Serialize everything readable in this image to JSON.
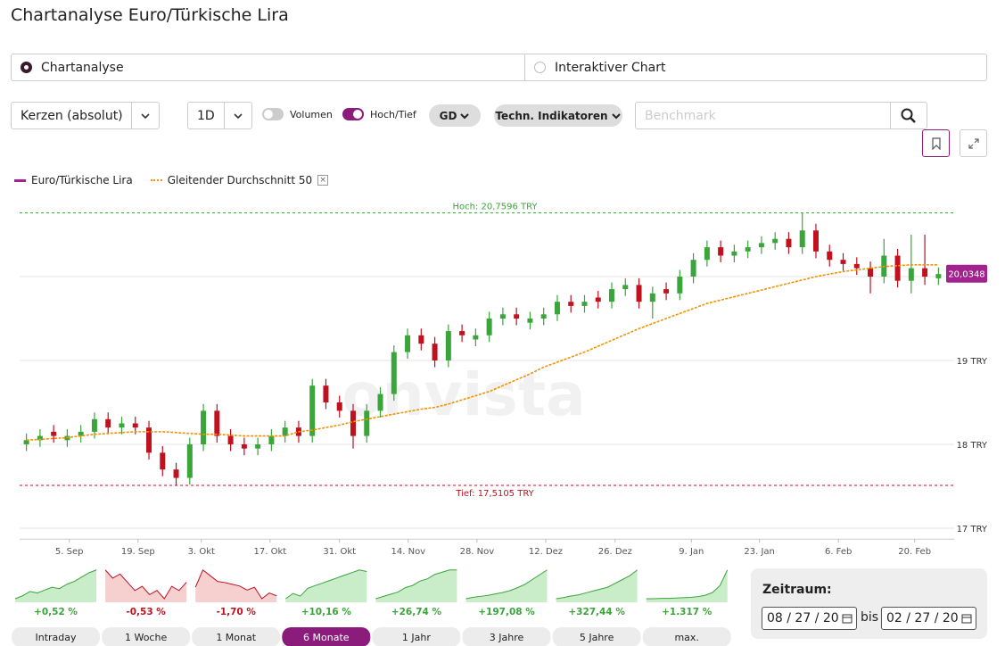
{
  "header": {
    "title": "Chartanalyse Euro/Türkische Lira"
  },
  "tabs": [
    {
      "label": "Chartanalyse",
      "selected": true
    },
    {
      "label": "Interaktiver Chart",
      "selected": false
    }
  ],
  "toolbar": {
    "chart_type": "Kerzen (absolut)",
    "interval": "1D",
    "toggles": [
      {
        "label": "Volumen",
        "on": false
      },
      {
        "label": "Hoch/Tief",
        "on": true
      }
    ],
    "buttons": [
      "GD",
      "Techn. Indikatoren"
    ],
    "benchmark_placeholder": "Benchmark"
  },
  "chart_data": {
    "type": "candlestick",
    "name": "Euro/Türkische Lira",
    "color": "#a3238e",
    "up_color": "#3aa53a",
    "down_color": "#c0111f",
    "watermark": "onvista",
    "x": [
      1,
      3,
      5,
      7,
      9,
      11,
      13,
      15,
      17,
      19,
      21,
      23,
      25,
      27,
      29,
      31,
      33,
      35,
      37,
      39,
      41,
      43,
      45,
      47,
      49,
      51,
      53,
      55,
      57,
      59,
      61,
      63,
      65,
      67,
      69,
      71,
      73,
      75,
      77,
      79,
      81,
      83,
      85,
      87,
      89,
      91,
      93,
      95,
      97,
      99,
      101,
      103,
      105,
      107,
      109,
      111,
      113,
      115,
      117,
      119,
      121,
      123,
      125,
      127,
      129,
      131,
      133,
      135
    ],
    "open": [
      18.0,
      18.05,
      18.15,
      18.05,
      18.1,
      18.15,
      18.3,
      18.2,
      18.25,
      18.2,
      17.9,
      17.7,
      17.6,
      18.0,
      18.4,
      18.1,
      18.0,
      17.95,
      18.0,
      18.1,
      18.2,
      18.1,
      18.7,
      18.5,
      18.4,
      18.1,
      18.4,
      18.6,
      19.1,
      19.3,
      19.2,
      19.0,
      19.35,
      19.25,
      19.3,
      19.5,
      19.55,
      19.45,
      19.5,
      19.55,
      19.7,
      19.65,
      19.75,
      19.7,
      19.85,
      19.9,
      19.7,
      19.85,
      19.8,
      20.0,
      20.2,
      20.35,
      20.25,
      20.3,
      20.35,
      20.4,
      20.45,
      20.35,
      20.55,
      20.3,
      20.2,
      20.15,
      20.1,
      20.0,
      20.25,
      19.95,
      20.1,
      19.98
    ],
    "high": [
      18.13,
      18.18,
      18.23,
      18.18,
      18.23,
      18.38,
      18.38,
      18.33,
      18.33,
      18.28,
      17.98,
      17.78,
      18.08,
      18.48,
      18.48,
      18.18,
      18.08,
      18.08,
      18.18,
      18.28,
      18.28,
      18.78,
      18.78,
      18.58,
      18.48,
      18.48,
      18.68,
      19.18,
      19.38,
      19.38,
      19.28,
      19.43,
      19.43,
      19.38,
      19.58,
      19.63,
      19.63,
      19.58,
      19.63,
      19.78,
      19.78,
      19.78,
      19.83,
      19.93,
      19.98,
      19.98,
      19.88,
      19.93,
      20.08,
      20.28,
      20.43,
      20.43,
      20.38,
      20.43,
      20.48,
      20.53,
      20.53,
      20.76,
      20.63,
      20.38,
      20.28,
      20.23,
      20.18,
      20.45,
      20.33,
      20.5,
      20.5,
      20.11
    ],
    "low": [
      17.92,
      17.97,
      18.02,
      17.97,
      18.02,
      18.07,
      18.12,
      18.12,
      18.12,
      17.82,
      17.62,
      17.51,
      17.52,
      17.92,
      18.02,
      17.92,
      17.87,
      17.87,
      17.92,
      18.02,
      18.02,
      18.02,
      18.42,
      18.32,
      17.95,
      18.02,
      18.32,
      18.52,
      19.02,
      19.12,
      18.92,
      18.92,
      19.22,
      19.17,
      19.22,
      19.42,
      19.42,
      19.37,
      19.42,
      19.47,
      19.57,
      19.57,
      19.62,
      19.62,
      19.77,
      19.62,
      19.5,
      19.72,
      19.72,
      19.92,
      20.12,
      20.17,
      20.17,
      20.22,
      20.27,
      20.32,
      20.27,
      20.27,
      20.22,
      20.12,
      20.07,
      20.02,
      19.8,
      19.92,
      19.87,
      19.8,
      19.9,
      19.9
    ],
    "close": [
      18.05,
      18.1,
      18.1,
      18.1,
      18.15,
      18.3,
      18.2,
      18.25,
      18.2,
      17.9,
      17.7,
      17.6,
      18.0,
      18.4,
      18.1,
      18.0,
      17.95,
      18.0,
      18.1,
      18.2,
      18.1,
      18.7,
      18.5,
      18.4,
      18.1,
      18.4,
      18.6,
      19.1,
      19.3,
      19.2,
      19.0,
      19.35,
      19.3,
      19.3,
      19.5,
      19.55,
      19.5,
      19.5,
      19.55,
      19.7,
      19.65,
      19.7,
      19.7,
      19.85,
      19.9,
      19.7,
      19.8,
      19.8,
      20.0,
      20.2,
      20.35,
      20.25,
      20.3,
      20.35,
      20.4,
      20.45,
      20.35,
      20.55,
      20.3,
      20.2,
      20.15,
      20.1,
      20.0,
      20.25,
      19.95,
      20.1,
      20.0,
      20.03
    ],
    "moving_average": {
      "name": "Gleitender Durchschnitt 50",
      "color": "#f39200",
      "values": [
        18.05,
        18.06,
        18.07,
        18.08,
        18.1,
        18.12,
        18.13,
        18.14,
        18.15,
        18.15,
        18.15,
        18.14,
        18.13,
        18.12,
        18.12,
        18.11,
        18.1,
        18.1,
        18.1,
        18.1,
        18.15,
        18.17,
        18.2,
        18.23,
        18.27,
        18.3,
        18.33,
        18.36,
        18.39,
        18.42,
        18.44,
        18.48,
        18.53,
        18.58,
        18.63,
        18.7,
        18.77,
        18.84,
        18.92,
        18.98,
        19.04,
        19.1,
        19.17,
        19.24,
        19.31,
        19.38,
        19.44,
        19.5,
        19.56,
        19.62,
        19.68,
        19.72,
        19.76,
        19.8,
        19.84,
        19.88,
        19.92,
        19.96,
        20.0,
        20.03,
        20.06,
        20.08,
        20.1,
        20.12,
        20.13,
        20.14,
        20.14,
        20.14
      ]
    },
    "high_line": {
      "value": 20.7596,
      "label": "Hoch: 20,7596 TRY",
      "color": "#3aa53a"
    },
    "low_line": {
      "value": 17.5105,
      "label": "Tief: 17,5105 TRY",
      "color": "#c0111f"
    },
    "last_price": {
      "value": 20.0348,
      "label": "20,0348"
    },
    "xlim": [
      0,
      136
    ],
    "xticks": [
      {
        "value": 7.3,
        "label": "5. Sep"
      },
      {
        "value": 17.4,
        "label": "19. Sep"
      },
      {
        "value": 26.7,
        "label": "3. Okt"
      },
      {
        "value": 36.8,
        "label": "17. Okt"
      },
      {
        "value": 47.0,
        "label": "31. Okt"
      },
      {
        "value": 57.1,
        "label": "14. Nov"
      },
      {
        "value": 67.2,
        "label": "28. Nov"
      },
      {
        "value": 77.3,
        "label": "12. Dez"
      },
      {
        "value": 87.5,
        "label": "26. Dez"
      },
      {
        "value": 98.7,
        "label": "9. Jan"
      },
      {
        "value": 108.7,
        "label": "23. Jan"
      },
      {
        "value": 120.3,
        "label": "6. Feb"
      },
      {
        "value": 131.5,
        "label": "20. Feb"
      }
    ],
    "ylim": [
      16.87,
      20.9
    ],
    "yticks": [
      {
        "value": 17,
        "label": "17 TRY"
      },
      {
        "value": 18,
        "label": "18 TRY"
      },
      {
        "value": 19,
        "label": "19 TRY"
      },
      {
        "value": 20,
        "label": ""
      }
    ],
    "grid": true
  },
  "periods": [
    {
      "label": "Intraday",
      "change": "+0,52 %",
      "color": "#3aa53a",
      "selected": false,
      "values": [
        40,
        42,
        45,
        44,
        46,
        48,
        47,
        50,
        52,
        55,
        58,
        60
      ]
    },
    {
      "label": "1 Woche",
      "change": "-0,53 %",
      "color": "#c0111f",
      "selected": false,
      "values": [
        60,
        58,
        59,
        57,
        55,
        56,
        54,
        55,
        53,
        56,
        55,
        57
      ]
    },
    {
      "label": "1 Monat",
      "change": "-1,70 %",
      "color": "#c0111f",
      "selected": false,
      "values": [
        50,
        80,
        70,
        60,
        58,
        55,
        52,
        45,
        50,
        30,
        40,
        35
      ]
    },
    {
      "label": "6 Monate",
      "change": "+10,16 %",
      "color": "#3aa53a",
      "selected": true,
      "values": [
        20,
        30,
        25,
        40,
        45,
        50,
        55,
        60,
        65,
        70,
        75,
        72
      ]
    },
    {
      "label": "1 Jahr",
      "change": "+26,74 %",
      "color": "#3aa53a",
      "selected": false,
      "values": [
        20,
        25,
        30,
        35,
        45,
        50,
        60,
        65,
        75,
        80,
        85,
        85
      ]
    },
    {
      "label": "3 Jahre",
      "change": "+197,08 %",
      "color": "#3aa53a",
      "selected": false,
      "values": [
        5,
        8,
        10,
        12,
        15,
        18,
        22,
        28,
        35,
        45,
        55,
        65
      ]
    },
    {
      "label": "5 Jahre",
      "change": "+327,44 %",
      "color": "#3aa53a",
      "selected": false,
      "values": [
        5,
        8,
        12,
        15,
        20,
        25,
        30,
        35,
        45,
        55,
        65,
        80
      ]
    },
    {
      "label": "max.",
      "change": "+1.317 %",
      "color": "#3aa53a",
      "selected": false,
      "values": [
        2,
        2,
        3,
        3,
        4,
        5,
        6,
        8,
        12,
        20,
        40,
        85
      ]
    }
  ],
  "range": {
    "label": "Zeitraum:",
    "from": "08 / 27 / 20",
    "separator": "bis",
    "to": "02 / 27 / 20"
  }
}
